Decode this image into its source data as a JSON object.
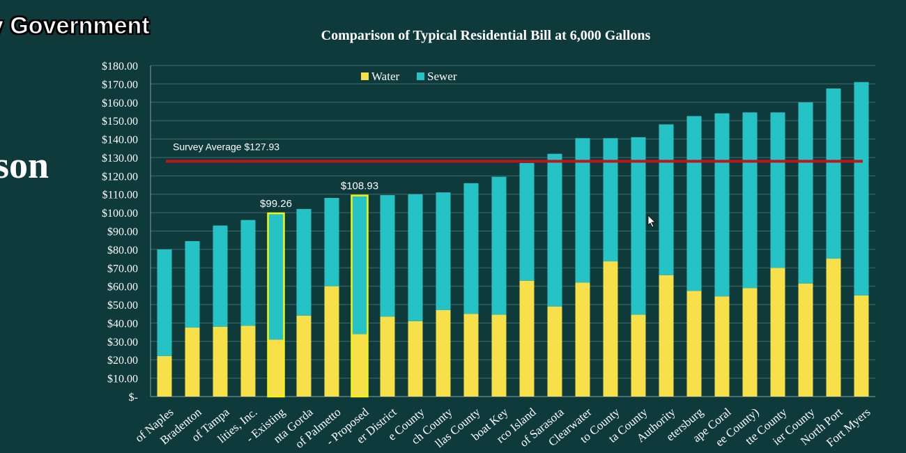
{
  "slide": {
    "header_label": "y Government",
    "side_word": "son"
  },
  "chart_data": {
    "type": "bar",
    "stacked": true,
    "title": "Comparison of Typical Residential Bill at 6,000 Gallons",
    "ylim": [
      0,
      180
    ],
    "yticks": [
      "$-",
      "$10.00",
      "$20.00",
      "$30.00",
      "$40.00",
      "$50.00",
      "$60.00",
      "$70.00",
      "$80.00",
      "$90.00",
      "$100.00",
      "$110.00",
      "$120.00",
      "$130.00",
      "$140.00",
      "$150.00",
      "$160.00",
      "$170.00",
      "$180.00"
    ],
    "grid": true,
    "legend": "top-left",
    "categories": [
      "of Naples",
      "Bradenton",
      "of Tampa",
      "lities, Inc.",
      "- Existing",
      "nta Gorda",
      "of Palmetto",
      "- Proposed",
      "er District",
      "e County",
      "ch County",
      "llas County",
      "boat Key",
      "rco Island",
      "of Sarasota",
      "Clearwater",
      "to County",
      "ta County",
      "Authority",
      "etersburg",
      "ape Coral",
      "ee County)",
      "tte County",
      "ier County",
      "North Port",
      "Fort Myers"
    ],
    "series": [
      {
        "name": "Water",
        "color": "#f7e04a",
        "values": [
          22,
          37.5,
          38,
          38.5,
          31,
          44,
          60,
          34,
          43.5,
          41,
          47,
          45,
          44.5,
          63,
          49,
          62,
          73.5,
          44.5,
          66,
          57.5,
          54.5,
          59,
          70,
          61.5,
          75,
          55
        ]
      },
      {
        "name": "Sewer",
        "color": "#26c3c6",
        "values": [
          58,
          47,
          55,
          57.5,
          68.26,
          58,
          48,
          74.93,
          66,
          69,
          64,
          71,
          75,
          64,
          83,
          78.5,
          67,
          96.5,
          82,
          95,
          99.5,
          95.5,
          84.5,
          98.5,
          92.5,
          116
        ]
      }
    ],
    "highlighted": [
      4,
      7
    ],
    "data_labels": [
      {
        "category_index": 4,
        "text": "$99.26"
      },
      {
        "category_index": 7,
        "text": "$108.93"
      }
    ],
    "reference_line": {
      "value": 127.93,
      "label": "Survey Average $127.93",
      "color": "#c0141c"
    }
  }
}
